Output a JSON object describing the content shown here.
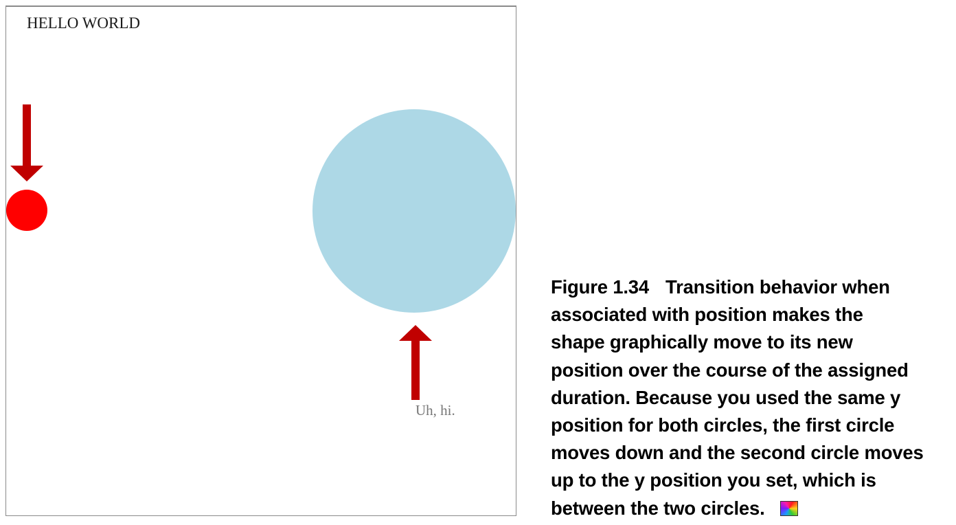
{
  "figure": {
    "hello_text": "HELLO WORLD",
    "uh_hi_text": "Uh, hi.",
    "colors": {
      "small_circle": "#ff0000",
      "large_circle": "#add8e6",
      "arrow": "#c00000"
    }
  },
  "caption": {
    "label": "Figure 1.34",
    "lines": [
      "Transition behavior when",
      "associated with position makes the",
      "shape graphically move to its new",
      "position over the course of the assigned",
      "duration. Because you used the same y",
      "position for both circles, the first circle",
      "moves down and the second circle moves",
      "up to the y position you set, which is",
      "between the two circles."
    ],
    "badge_icon": "color-icon"
  }
}
